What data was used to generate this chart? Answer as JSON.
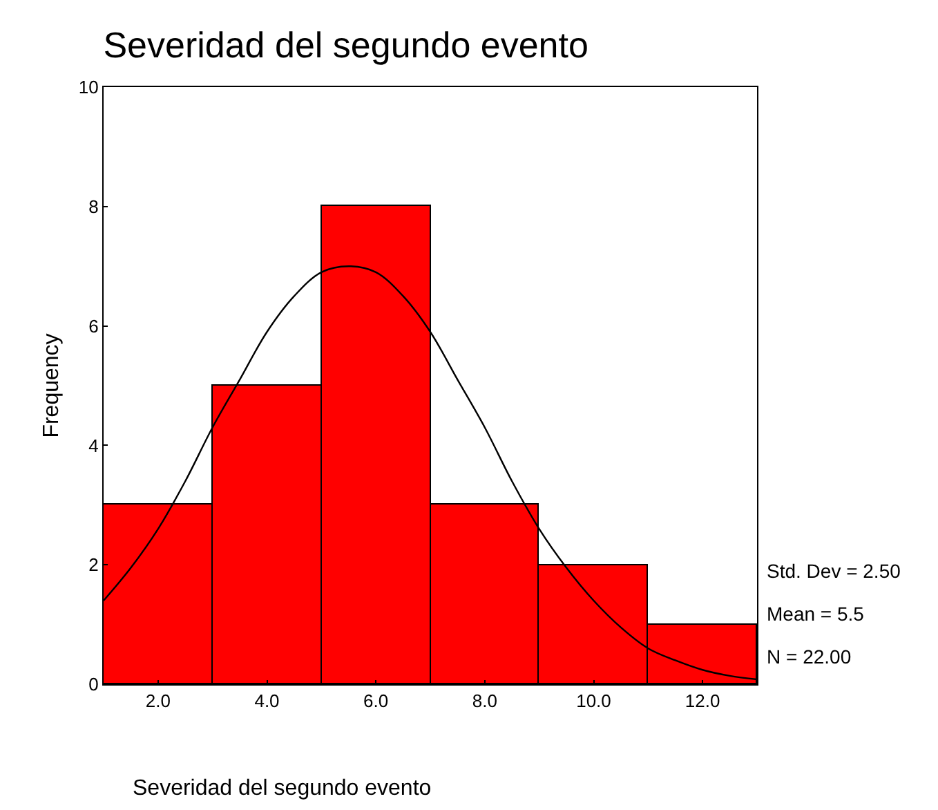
{
  "chart_data": {
    "type": "histogram",
    "title": "Severidad del segundo evento",
    "xlabel": "Severidad del segundo evento",
    "ylabel": "Frequency",
    "bins": [
      1,
      3,
      5,
      7,
      9,
      11,
      13
    ],
    "values": [
      3,
      5,
      8,
      3,
      2,
      1
    ],
    "color": "#ff0000",
    "series": [
      {
        "type": "line",
        "color": "#000000",
        "x": [
          1,
          1.5,
          2,
          2.5,
          3,
          3.5,
          4,
          4.5,
          5,
          5.5,
          6,
          6.5,
          7,
          7.5,
          8,
          8.5,
          9,
          9.5,
          10,
          10.5,
          11,
          11.5,
          12,
          12.5,
          13
        ],
        "values": [
          1.4,
          1.95,
          2.6,
          3.4,
          4.3,
          5.1,
          5.9,
          6.5,
          6.9,
          7.0,
          6.9,
          6.5,
          5.9,
          5.1,
          4.3,
          3.4,
          2.6,
          1.95,
          1.4,
          0.95,
          0.6,
          0.4,
          0.24,
          0.14,
          0.08
        ]
      }
    ],
    "xlim": [
      1,
      13
    ],
    "xticks": [
      {
        "value": 2,
        "label": "2.0"
      },
      {
        "value": 4,
        "label": "4.0"
      },
      {
        "value": 6,
        "label": "6.0"
      },
      {
        "value": 8,
        "label": "8.0"
      },
      {
        "value": 10,
        "label": "10.0"
      },
      {
        "value": 12,
        "label": "12.0"
      }
    ],
    "ylim": [
      0,
      10
    ],
    "yticks": [
      0,
      2,
      4,
      6,
      8,
      10
    ],
    "annotations": [
      "Std. Dev = 2.50",
      "Mean = 5.5",
      "N = 22.00"
    ]
  }
}
